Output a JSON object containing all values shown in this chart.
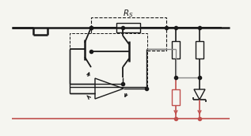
{
  "bg_color": "#f5f5f0",
  "line_color": "#1a1a1a",
  "red_color": "#c0504d",
  "gray_color": "#888888",
  "fig_width": 3.17,
  "fig_height": 1.72,
  "dpi": 100
}
